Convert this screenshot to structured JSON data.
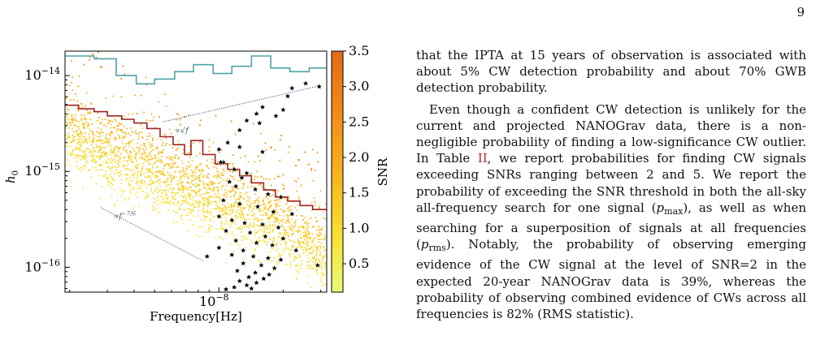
{
  "page_number": "9",
  "figure": {
    "chart_data": {
      "type": "scatter",
      "xlabel": "Frequency[Hz]",
      "ylabel": "h",
      "ylabel_sub": "0",
      "x_scale": "log",
      "y_scale": "log",
      "x_ticks": [
        {
          "value": 1e-08,
          "base": "10",
          "exp": "−8"
        }
      ],
      "y_ticks": [
        {
          "value": 1e-14,
          "base": "10",
          "exp": "−14"
        },
        {
          "value": 1e-15,
          "base": "10",
          "exp": "−15"
        },
        {
          "value": 1e-16,
          "base": "10",
          "exp": "−16"
        }
      ],
      "xlim": [
        1.9e-09,
        3.2e-08
      ],
      "ylim": [
        5.5e-17,
        1.8e-14
      ],
      "colorbar": {
        "label": "SNR",
        "range": [
          0.1,
          3.5
        ],
        "ticks": [
          "3.5",
          "3.0",
          "2.5",
          "2.0",
          "1.5",
          "1.0",
          "0.5"
        ],
        "tick_values": [
          3.5,
          3.0,
          2.5,
          2.0,
          1.5,
          1.0,
          0.5
        ],
        "colormap": [
          "#e9fa7a",
          "#f7e43a",
          "#f9c321",
          "#f6a11a",
          "#f08318",
          "#e46a17"
        ]
      },
      "annotations": [
        {
          "text": "∝√f",
          "x": 6.2e-09,
          "y": 2.5e-15
        },
        {
          "text": "∝f",
          "sup": "−7/6",
          "x": 3.2e-09,
          "y": 3.2e-16
        }
      ],
      "series": [
        {
          "style": "step",
          "color": "#4fa3a6",
          "x": [
            1.9e-09,
            2.6e-09,
            3.3e-09,
            4.1e-09,
            5e-09,
            6.2e-09,
            7.6e-09,
            9.4e-09,
            1.15e-08,
            1.42e-08,
            1.75e-08,
            2.15e-08,
            2.65e-08,
            3.2e-08
          ],
          "y": [
            1.6e-14,
            1.5e-14,
            1e-14,
            8.2e-15,
            9.2e-15,
            1.1e-14,
            1.3e-14,
            1.05e-14,
            1.25e-14,
            1.6e-14,
            1.2e-14,
            1.1e-14,
            1.2e-14,
            1.8e-14
          ]
        },
        {
          "style": "step",
          "color": "#9e2424",
          "x": [
            1.9e-09,
            2.2e-09,
            2.6e-09,
            3e-09,
            3.5e-09,
            4e-09,
            4.6e-09,
            5.3e-09,
            6.1e-09,
            6.9e-09,
            7.4e-09,
            8.4e-09,
            9.6e-09,
            1.1e-08,
            1.25e-08,
            1.42e-08,
            1.62e-08,
            1.84e-08,
            2.1e-08,
            2.4e-08,
            2.75e-08,
            3.2e-08
          ],
          "y": [
            4.9e-15,
            4.5e-15,
            4.2e-15,
            3.8e-15,
            3.5e-15,
            3.2e-15,
            2.8e-15,
            2.3e-15,
            1.9e-15,
            1.5e-15,
            2.1e-15,
            1.5e-15,
            1.2e-15,
            1.05e-15,
            9e-16,
            7.6e-16,
            6.4e-16,
            5.4e-16,
            4.9e-16,
            4.4e-16,
            4e-16,
            3.7e-16
          ]
        },
        {
          "style": "dotted",
          "color": "#2a4d7a",
          "x": [
            5.5e-09,
            2.95e-08
          ],
          "y": [
            3.3e-15,
            7.8e-15
          ]
        },
        {
          "style": "dotted",
          "color": "#555555",
          "x": [
            2.8e-09,
            8.5e-09
          ],
          "y": [
            4.2e-16,
            1.15e-16
          ]
        },
        {
          "style": "stars",
          "color": "#000000",
          "points": [
            [
              2.55e-08,
              8.3e-15
            ],
            [
              2.95e-08,
              7.7e-15
            ],
            [
              2.2e-08,
              7.4e-15
            ],
            [
              2.1e-08,
              6.1e-15
            ],
            [
              1.6e-08,
              4.7e-15
            ],
            [
              2e-08,
              4.4e-15
            ],
            [
              1.85e-08,
              3.8e-15
            ],
            [
              1.5e-08,
              4e-15
            ],
            [
              1.35e-08,
              3.4e-15
            ],
            [
              1.55e-08,
              3.2e-15
            ],
            [
              1.25e-08,
              2.7e-15
            ],
            [
              1.1e-08,
              2e-15
            ],
            [
              1e-08,
              1.7e-15
            ],
            [
              1.25e-08,
              1.8e-15
            ],
            [
              1.6e-08,
              1.6e-15
            ],
            [
              1.05e-08,
              1.25e-15
            ],
            [
              1.18e-08,
              1.05e-15
            ],
            [
              1.35e-08,
              9.6e-16
            ],
            [
              1.28e-08,
              8.6e-16
            ],
            [
              1.12e-08,
              7.8e-16
            ],
            [
              1.2e-08,
              7e-16
            ],
            [
              1.48e-08,
              6.5e-16
            ],
            [
              1.7e-08,
              5.8e-16
            ],
            [
              1.95e-08,
              5.4e-16
            ],
            [
              1.05e-08,
              5e-16
            ],
            [
              1.25e-08,
              4.6e-16
            ],
            [
              1.52e-08,
              4.3e-16
            ],
            [
              1.8e-08,
              3.8e-16
            ],
            [
              2.2e-08,
              3.6e-16
            ],
            [
              1e-08,
              3.4e-16
            ],
            [
              1.15e-08,
              3.1e-16
            ],
            [
              1.32e-08,
              2.9e-16
            ],
            [
              1.6e-08,
              2.8e-16
            ],
            [
              1.9e-08,
              2.6e-16
            ],
            [
              1.08e-08,
              2.4e-16
            ],
            [
              1.4e-08,
              2.3e-16
            ],
            [
              1.65e-08,
              2.1e-16
            ],
            [
              2e-08,
              2e-16
            ],
            [
              1.2e-08,
              1.9e-16
            ],
            [
              1.5e-08,
              1.8e-16
            ],
            [
              1.78e-08,
              1.7e-16
            ],
            [
              1e-08,
              1.6e-16
            ],
            [
              1.3e-08,
              1.5e-16
            ],
            [
              2.3e-08,
              1.5e-16
            ],
            [
              1.15e-08,
              1.35e-16
            ],
            [
              1.45e-08,
              1.3e-16
            ],
            [
              1.7e-08,
              1.25e-16
            ],
            [
              1.95e-08,
              1.2e-16
            ],
            [
              1.3e-08,
              1.1e-16
            ],
            [
              1.58e-08,
              1.05e-16
            ],
            [
              1.82e-08,
              9.8e-17
            ],
            [
              1.22e-08,
              9.2e-17
            ],
            [
              1.48e-08,
              8.8e-17
            ],
            [
              1.72e-08,
              8.4e-17
            ],
            [
              1.38e-08,
              7.9e-17
            ],
            [
              1.62e-08,
              7.6e-17
            ],
            [
              1.25e-08,
              7.2e-17
            ],
            [
              1.5e-08,
              6.9e-17
            ],
            [
              1.35e-08,
              6.5e-17
            ],
            [
              1.18e-08,
              6.2e-17
            ],
            [
              1.42e-08,
              6e-17
            ],
            [
              1.08e-08,
              5.9e-17
            ],
            [
              2.9e-08,
              1.05e-16
            ],
            [
              1.02e-08,
              1.25e-15
            ],
            [
              8.8e-09,
              1.3e-16
            ]
          ]
        }
      ],
      "scatter_cloud": {
        "count": 5200,
        "trend_at_xmin": 2.6e-15,
        "slope": -1.0,
        "log_spread": 0.2,
        "outlier_fraction": 0.05
      }
    }
  },
  "text": {
    "paragraph_1": "that the IPTA at 15 years of observation is associated with about 5% CW detection probability and about 70% GWB detection probability.",
    "p2_part1": "Even though a confident CW detection is unlikely for the current and projected NANOGrav data, there is a non-negligible probability of finding a low-significance CW outlier.  In Table ",
    "p2_ref": "II",
    "p2_part2": ", we report probabilities for finding CW signals exceeding SNRs ranging between 2 and 5. We report the probability of exceeding the SNR threshold in both the all-sky all-frequency search for one signal (",
    "p2_pmax": "p",
    "p2_pmax_sub": "max",
    "p2_part3": "), as well as when searching for a superposition of signals at all frequencies (",
    "p2_prms": "p",
    "p2_prms_sub": "rms",
    "p2_part4": ").  Notably, the probability of observing emerging evidence of the CW signal at the level of SNR=2 in the expected 20-year NANOGrav data is 39%, whereas the probability of observing combined evidence of CWs across all frequencies is 82% (RMS statistic)."
  }
}
